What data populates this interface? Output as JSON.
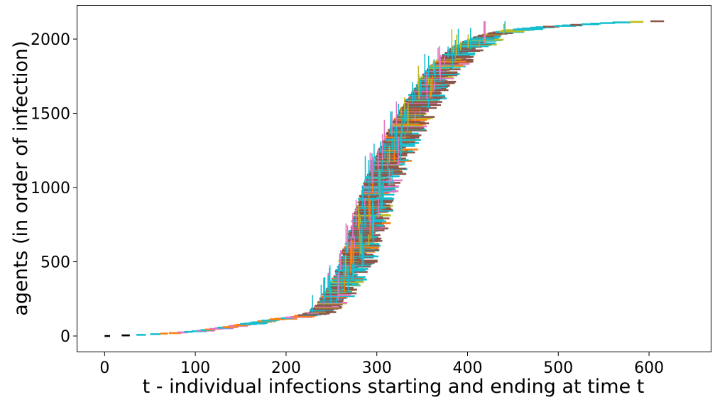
{
  "chart_data": {
    "type": "line",
    "title": "",
    "xlabel": "t - individual infections starting and ending at time t",
    "ylabel": "agents (in order of infection)",
    "xlim": [
      -30,
      668
    ],
    "ylim": [
      -105,
      2225
    ],
    "xticks": [
      0,
      100,
      200,
      300,
      400,
      500,
      600
    ],
    "yticks": [
      0,
      500,
      1000,
      1500,
      2000
    ],
    "grid": false,
    "legend": "none",
    "colors": [
      "#000000",
      "#ff7f0e",
      "#8c564b",
      "#17becf",
      "#e377c2",
      "#bcbd22",
      "#2ca02c",
      "#1f77b4",
      "#9467bd",
      "#d62728",
      "#7f7f7f"
    ],
    "curve": {
      "description_free": true,
      "x": [
        0,
        25,
        50,
        75,
        100,
        125,
        150,
        175,
        200,
        215,
        225,
        235,
        245,
        255,
        265,
        275,
        285,
        295,
        305,
        315,
        325,
        335,
        345,
        355,
        365,
        375,
        385,
        395,
        410,
        430,
        450,
        475,
        500,
        525,
        550,
        575,
        600,
        615
      ],
      "y": [
        0,
        5,
        12,
        22,
        35,
        55,
        80,
        105,
        125,
        140,
        160,
        220,
        310,
        430,
        600,
        800,
        1000,
        1150,
        1280,
        1400,
        1510,
        1610,
        1700,
        1790,
        1850,
        1900,
        1950,
        1980,
        2020,
        2050,
        2065,
        2080,
        2090,
        2100,
        2110,
        2115,
        2120,
        2120
      ],
      "duration": [
        6,
        8,
        10,
        12,
        15,
        18,
        18,
        18,
        18,
        20,
        22,
        24,
        26,
        28,
        30,
        30,
        30,
        30,
        30,
        30,
        30,
        30,
        30,
        30,
        30,
        30,
        30,
        30,
        28,
        25,
        22,
        20,
        18,
        16,
        15,
        15,
        15,
        15
      ]
    }
  }
}
